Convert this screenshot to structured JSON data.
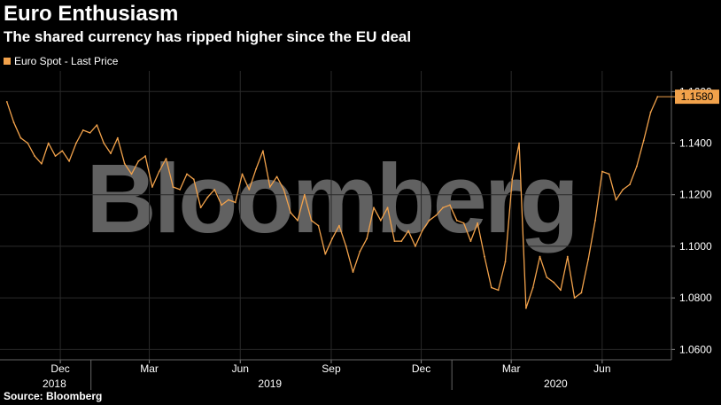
{
  "title": "Euro Enthusiasm",
  "subtitle": "The shared currency has ripped higher since the EU deal",
  "source": "Source: Bloomberg",
  "watermark": "Bloomberg",
  "colors": {
    "line": "#f2a24b",
    "grid": "#2a2a2a",
    "background": "#000000",
    "label_bg": "#f2a24b"
  },
  "chart_data": {
    "type": "line",
    "title": "Euro Enthusiasm",
    "subtitle": "The shared currency has ripped higher since the EU deal",
    "series": [
      {
        "name": "Euro Spot - Last Price",
        "x": [
          "2018-10-08",
          "2018-10-15",
          "2018-10-22",
          "2018-10-29",
          "2018-11-05",
          "2018-11-12",
          "2018-11-19",
          "2018-11-26",
          "2018-12-03",
          "2018-12-10",
          "2018-12-17",
          "2018-12-24",
          "2018-12-31",
          "2019-01-07",
          "2019-01-14",
          "2019-01-21",
          "2019-01-28",
          "2019-02-04",
          "2019-02-11",
          "2019-02-18",
          "2019-02-25",
          "2019-03-04",
          "2019-03-11",
          "2019-03-18",
          "2019-03-25",
          "2019-04-01",
          "2019-04-08",
          "2019-04-15",
          "2019-04-22",
          "2019-04-29",
          "2019-05-06",
          "2019-05-13",
          "2019-05-20",
          "2019-05-27",
          "2019-06-03",
          "2019-06-10",
          "2019-06-17",
          "2019-06-24",
          "2019-07-01",
          "2019-07-08",
          "2019-07-15",
          "2019-07-22",
          "2019-07-29",
          "2019-08-05",
          "2019-08-12",
          "2019-08-19",
          "2019-08-26",
          "2019-09-02",
          "2019-09-09",
          "2019-09-16",
          "2019-09-23",
          "2019-09-30",
          "2019-10-07",
          "2019-10-14",
          "2019-10-21",
          "2019-10-28",
          "2019-11-04",
          "2019-11-11",
          "2019-11-18",
          "2019-11-25",
          "2019-12-02",
          "2019-12-09",
          "2019-12-16",
          "2019-12-23",
          "2019-12-30",
          "2020-01-06",
          "2020-01-13",
          "2020-01-20",
          "2020-01-27",
          "2020-02-03",
          "2020-02-10",
          "2020-02-17",
          "2020-02-24",
          "2020-03-02",
          "2020-03-09",
          "2020-03-16",
          "2020-03-23",
          "2020-03-30",
          "2020-04-06",
          "2020-04-13",
          "2020-04-20",
          "2020-04-27",
          "2020-05-04",
          "2020-05-11",
          "2020-05-18",
          "2020-05-25",
          "2020-06-01",
          "2020-06-08",
          "2020-06-15",
          "2020-06-22",
          "2020-06-29",
          "2020-07-06",
          "2020-07-13",
          "2020-07-20",
          "2020-07-27"
        ],
        "y": [
          1.156,
          1.148,
          1.142,
          1.14,
          1.135,
          1.132,
          1.14,
          1.135,
          1.137,
          1.133,
          1.14,
          1.145,
          1.144,
          1.147,
          1.14,
          1.136,
          1.142,
          1.132,
          1.128,
          1.133,
          1.135,
          1.123,
          1.129,
          1.134,
          1.123,
          1.122,
          1.128,
          1.126,
          1.115,
          1.119,
          1.122,
          1.116,
          1.118,
          1.117,
          1.128,
          1.122,
          1.13,
          1.137,
          1.123,
          1.127,
          1.122,
          1.113,
          1.11,
          1.12,
          1.11,
          1.108,
          1.097,
          1.103,
          1.108,
          1.1,
          1.09,
          1.098,
          1.103,
          1.115,
          1.11,
          1.115,
          1.102,
          1.102,
          1.106,
          1.1,
          1.106,
          1.11,
          1.112,
          1.115,
          1.116,
          1.11,
          1.109,
          1.102,
          1.109,
          1.096,
          1.084,
          1.083,
          1.094,
          1.126,
          1.14,
          1.076,
          1.084,
          1.096,
          1.088,
          1.086,
          1.083,
          1.096,
          1.08,
          1.082,
          1.095,
          1.11,
          1.129,
          1.128,
          1.118,
          1.122,
          1.124,
          1.131,
          1.141,
          1.152,
          1.158
        ]
      }
    ],
    "ylim": [
      1.056,
      1.168
    ],
    "yticks": [
      1.06,
      1.08,
      1.1,
      1.12,
      1.14,
      1.16
    ],
    "ytick_labels": [
      "1.0600",
      "1.0800",
      "1.1000",
      "1.1200",
      "1.1400",
      "1.1600"
    ],
    "xrange": [
      "2018-10-01",
      "2020-08-10"
    ],
    "month_ticks": [
      {
        "date": "2018-12-01",
        "label": "Dec"
      },
      {
        "date": "2019-03-01",
        "label": "Mar"
      },
      {
        "date": "2019-06-01",
        "label": "Jun"
      },
      {
        "date": "2019-09-01",
        "label": "Sep"
      },
      {
        "date": "2019-12-01",
        "label": "Dec"
      },
      {
        "date": "2020-03-01",
        "label": "Mar"
      },
      {
        "date": "2020-06-01",
        "label": "Jun"
      }
    ],
    "year_labels": [
      {
        "date": "2018-11-25",
        "label": "2018"
      },
      {
        "date": "2019-07-01",
        "label": "2019"
      },
      {
        "date": "2020-04-15",
        "label": "2020"
      }
    ],
    "year_dividers": [
      "2019-01-01",
      "2020-01-01"
    ],
    "last_value": 1.158,
    "last_value_label": "1.1580",
    "grid": true,
    "legend_position": "top-left"
  }
}
